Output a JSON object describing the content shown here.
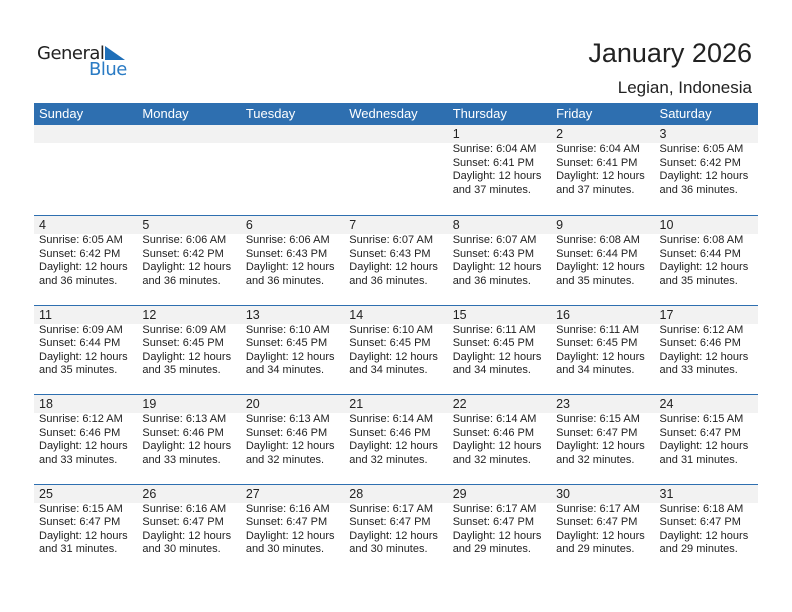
{
  "logo": {
    "line1": "General",
    "line2": "Blue"
  },
  "title": "January 2026",
  "location": "Legian, Indonesia",
  "colors": {
    "header": "#2e6fb0",
    "date_band": "#f2f2f2",
    "logo_blue": "#2a7bc4"
  },
  "weekdays": [
    "Sunday",
    "Monday",
    "Tuesday",
    "Wednesday",
    "Thursday",
    "Friday",
    "Saturday"
  ],
  "weeks": [
    {
      "days": [
        null,
        null,
        null,
        null,
        {
          "day": "1",
          "sunrise": "Sunrise: 6:04 AM",
          "sunset": "Sunset: 6:41 PM",
          "daylight": "Daylight: 12 hours",
          "minutes": "and 37 minutes."
        },
        {
          "day": "2",
          "sunrise": "Sunrise: 6:04 AM",
          "sunset": "Sunset: 6:41 PM",
          "daylight": "Daylight: 12 hours",
          "minutes": "and 37 minutes."
        },
        {
          "day": "3",
          "sunrise": "Sunrise: 6:05 AM",
          "sunset": "Sunset: 6:42 PM",
          "daylight": "Daylight: 12 hours",
          "minutes": "and 36 minutes."
        }
      ]
    },
    {
      "days": [
        {
          "day": "4",
          "sunrise": "Sunrise: 6:05 AM",
          "sunset": "Sunset: 6:42 PM",
          "daylight": "Daylight: 12 hours",
          "minutes": "and 36 minutes."
        },
        {
          "day": "5",
          "sunrise": "Sunrise: 6:06 AM",
          "sunset": "Sunset: 6:42 PM",
          "daylight": "Daylight: 12 hours",
          "minutes": "and 36 minutes."
        },
        {
          "day": "6",
          "sunrise": "Sunrise: 6:06 AM",
          "sunset": "Sunset: 6:43 PM",
          "daylight": "Daylight: 12 hours",
          "minutes": "and 36 minutes."
        },
        {
          "day": "7",
          "sunrise": "Sunrise: 6:07 AM",
          "sunset": "Sunset: 6:43 PM",
          "daylight": "Daylight: 12 hours",
          "minutes": "and 36 minutes."
        },
        {
          "day": "8",
          "sunrise": "Sunrise: 6:07 AM",
          "sunset": "Sunset: 6:43 PM",
          "daylight": "Daylight: 12 hours",
          "minutes": "and 36 minutes."
        },
        {
          "day": "9",
          "sunrise": "Sunrise: 6:08 AM",
          "sunset": "Sunset: 6:44 PM",
          "daylight": "Daylight: 12 hours",
          "minutes": "and 35 minutes."
        },
        {
          "day": "10",
          "sunrise": "Sunrise: 6:08 AM",
          "sunset": "Sunset: 6:44 PM",
          "daylight": "Daylight: 12 hours",
          "minutes": "and 35 minutes."
        }
      ]
    },
    {
      "days": [
        {
          "day": "11",
          "sunrise": "Sunrise: 6:09 AM",
          "sunset": "Sunset: 6:44 PM",
          "daylight": "Daylight: 12 hours",
          "minutes": "and 35 minutes."
        },
        {
          "day": "12",
          "sunrise": "Sunrise: 6:09 AM",
          "sunset": "Sunset: 6:45 PM",
          "daylight": "Daylight: 12 hours",
          "minutes": "and 35 minutes."
        },
        {
          "day": "13",
          "sunrise": "Sunrise: 6:10 AM",
          "sunset": "Sunset: 6:45 PM",
          "daylight": "Daylight: 12 hours",
          "minutes": "and 34 minutes."
        },
        {
          "day": "14",
          "sunrise": "Sunrise: 6:10 AM",
          "sunset": "Sunset: 6:45 PM",
          "daylight": "Daylight: 12 hours",
          "minutes": "and 34 minutes."
        },
        {
          "day": "15",
          "sunrise": "Sunrise: 6:11 AM",
          "sunset": "Sunset: 6:45 PM",
          "daylight": "Daylight: 12 hours",
          "minutes": "and 34 minutes."
        },
        {
          "day": "16",
          "sunrise": "Sunrise: 6:11 AM",
          "sunset": "Sunset: 6:45 PM",
          "daylight": "Daylight: 12 hours",
          "minutes": "and 34 minutes."
        },
        {
          "day": "17",
          "sunrise": "Sunrise: 6:12 AM",
          "sunset": "Sunset: 6:46 PM",
          "daylight": "Daylight: 12 hours",
          "minutes": "and 33 minutes."
        }
      ]
    },
    {
      "days": [
        {
          "day": "18",
          "sunrise": "Sunrise: 6:12 AM",
          "sunset": "Sunset: 6:46 PM",
          "daylight": "Daylight: 12 hours",
          "minutes": "and 33 minutes."
        },
        {
          "day": "19",
          "sunrise": "Sunrise: 6:13 AM",
          "sunset": "Sunset: 6:46 PM",
          "daylight": "Daylight: 12 hours",
          "minutes": "and 33 minutes."
        },
        {
          "day": "20",
          "sunrise": "Sunrise: 6:13 AM",
          "sunset": "Sunset: 6:46 PM",
          "daylight": "Daylight: 12 hours",
          "minutes": "and 32 minutes."
        },
        {
          "day": "21",
          "sunrise": "Sunrise: 6:14 AM",
          "sunset": "Sunset: 6:46 PM",
          "daylight": "Daylight: 12 hours",
          "minutes": "and 32 minutes."
        },
        {
          "day": "22",
          "sunrise": "Sunrise: 6:14 AM",
          "sunset": "Sunset: 6:46 PM",
          "daylight": "Daylight: 12 hours",
          "minutes": "and 32 minutes."
        },
        {
          "day": "23",
          "sunrise": "Sunrise: 6:15 AM",
          "sunset": "Sunset: 6:47 PM",
          "daylight": "Daylight: 12 hours",
          "minutes": "and 32 minutes."
        },
        {
          "day": "24",
          "sunrise": "Sunrise: 6:15 AM",
          "sunset": "Sunset: 6:47 PM",
          "daylight": "Daylight: 12 hours",
          "minutes": "and 31 minutes."
        }
      ]
    },
    {
      "days": [
        {
          "day": "25",
          "sunrise": "Sunrise: 6:15 AM",
          "sunset": "Sunset: 6:47 PM",
          "daylight": "Daylight: 12 hours",
          "minutes": "and 31 minutes."
        },
        {
          "day": "26",
          "sunrise": "Sunrise: 6:16 AM",
          "sunset": "Sunset: 6:47 PM",
          "daylight": "Daylight: 12 hours",
          "minutes": "and 30 minutes."
        },
        {
          "day": "27",
          "sunrise": "Sunrise: 6:16 AM",
          "sunset": "Sunset: 6:47 PM",
          "daylight": "Daylight: 12 hours",
          "minutes": "and 30 minutes."
        },
        {
          "day": "28",
          "sunrise": "Sunrise: 6:17 AM",
          "sunset": "Sunset: 6:47 PM",
          "daylight": "Daylight: 12 hours",
          "minutes": "and 30 minutes."
        },
        {
          "day": "29",
          "sunrise": "Sunrise: 6:17 AM",
          "sunset": "Sunset: 6:47 PM",
          "daylight": "Daylight: 12 hours",
          "minutes": "and 29 minutes."
        },
        {
          "day": "30",
          "sunrise": "Sunrise: 6:17 AM",
          "sunset": "Sunset: 6:47 PM",
          "daylight": "Daylight: 12 hours",
          "minutes": "and 29 minutes."
        },
        {
          "day": "31",
          "sunrise": "Sunrise: 6:18 AM",
          "sunset": "Sunset: 6:47 PM",
          "daylight": "Daylight: 12 hours",
          "minutes": "and 29 minutes."
        }
      ]
    }
  ]
}
